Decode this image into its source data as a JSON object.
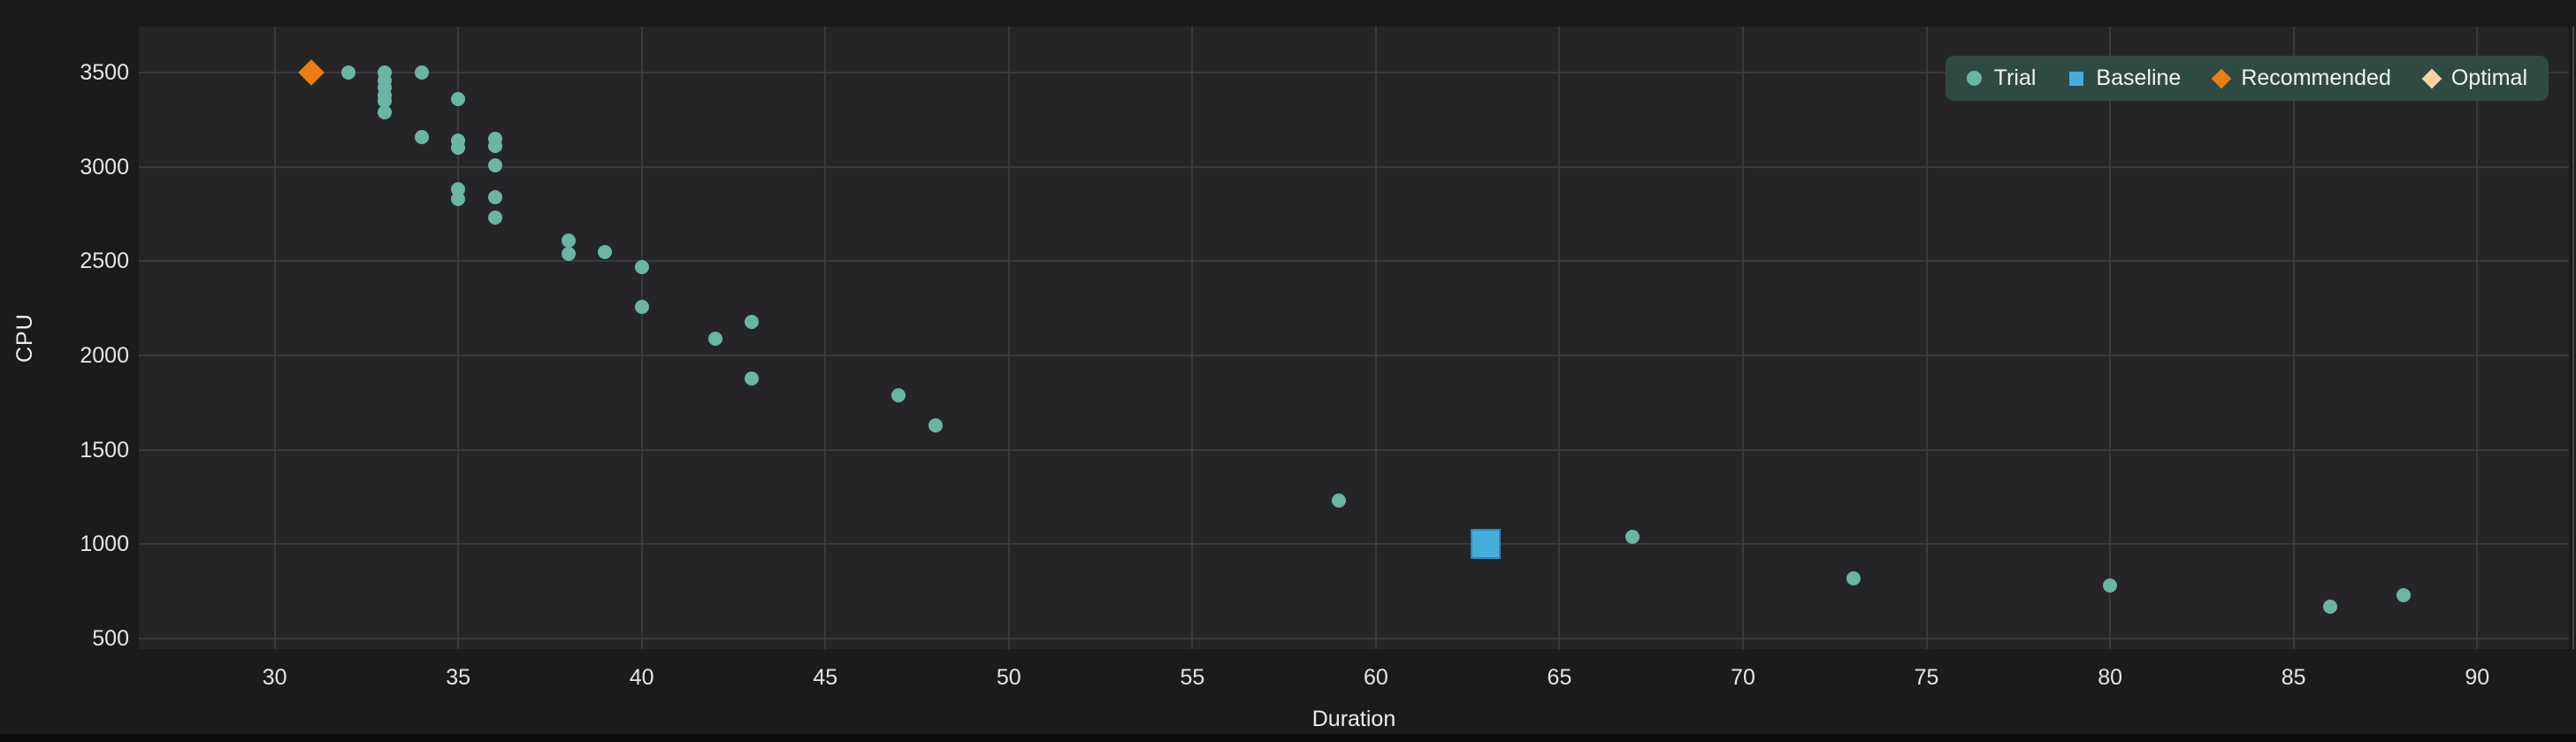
{
  "chart_data": {
    "type": "scatter",
    "title": "",
    "xlabel": "Duration",
    "ylabel": "CPU",
    "xlim": [
      26.3,
      92.5
    ],
    "ylim": [
      444,
      3744
    ],
    "xticks": [
      30,
      35,
      40,
      45,
      50,
      55,
      60,
      65,
      70,
      75,
      80,
      85,
      90
    ],
    "yticks": [
      500,
      1000,
      1500,
      2000,
      2500,
      3000,
      3500
    ],
    "grid": true,
    "legend_position": "top-right",
    "series": [
      {
        "name": "Trial",
        "marker": "circle",
        "color": "#6ab5a3",
        "size": 16,
        "points": [
          [
            32,
            3500
          ],
          [
            33,
            3500
          ],
          [
            33,
            3460
          ],
          [
            33,
            3420
          ],
          [
            33,
            3380
          ],
          [
            33,
            3350
          ],
          [
            33,
            3290
          ],
          [
            34,
            3500
          ],
          [
            34,
            3160
          ],
          [
            35,
            3360
          ],
          [
            35,
            3140
          ],
          [
            35,
            3100
          ],
          [
            35,
            2880
          ],
          [
            35,
            2830
          ],
          [
            36,
            3150
          ],
          [
            36,
            3110
          ],
          [
            36,
            3010
          ],
          [
            36,
            2840
          ],
          [
            36,
            2730
          ],
          [
            38,
            2610
          ],
          [
            38,
            2540
          ],
          [
            39,
            2550
          ],
          [
            40,
            2470
          ],
          [
            40,
            2260
          ],
          [
            42,
            2090
          ],
          [
            43,
            2180
          ],
          [
            43,
            1880
          ],
          [
            47,
            1790
          ],
          [
            48,
            1630
          ],
          [
            59,
            1230
          ],
          [
            67,
            1040
          ],
          [
            73,
            820
          ],
          [
            80,
            780
          ],
          [
            86,
            670
          ],
          [
            88,
            730
          ]
        ]
      },
      {
        "name": "Baseline",
        "marker": "square",
        "color": "#45aedd",
        "border_color": "#2f87b8",
        "size": 30,
        "points": [
          [
            63,
            1000
          ]
        ]
      },
      {
        "name": "Recommended",
        "marker": "diamond",
        "color": "#eb7d15",
        "size": 21,
        "points": [
          [
            31,
            3500
          ]
        ]
      },
      {
        "name": "Optimal",
        "marker": "diamond",
        "color": "#f8d2a4",
        "size": 21,
        "points": []
      }
    ]
  },
  "theme": {
    "page_background": "#1b1b1d",
    "plot_background": "#252527",
    "gridline_color": "#39393c",
    "tick_label_color": "#e6e6e6",
    "axis_title_color": "#ececec",
    "legend_background": "#2e4a43",
    "legend_text_color": "#f2f2f2",
    "bottom_strip_color": "#0c0c0c"
  }
}
